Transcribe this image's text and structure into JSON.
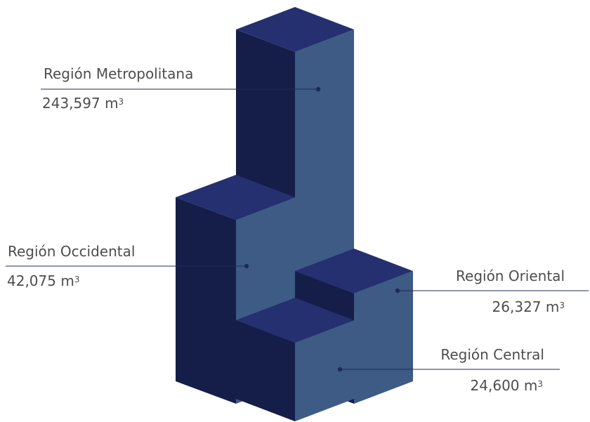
{
  "colors": {
    "top": "#24306f",
    "left": "#151e48",
    "right": "#3d5b85",
    "leader": "#1f2a5a",
    "text": "#4d4d4d"
  },
  "chart_data": {
    "type": "bar",
    "style": "isometric-3d-stacked-blocks",
    "unit": "m",
    "unit_exponent": "3",
    "categories": [
      "Región Metropolitana",
      "Región Occidental",
      "Región Oriental",
      "Región Central"
    ],
    "values": [
      243597,
      42075,
      26327,
      24600
    ],
    "value_labels": [
      "243,597 m",
      "42,075 m",
      "26,327 m",
      "24,600 m"
    ]
  }
}
